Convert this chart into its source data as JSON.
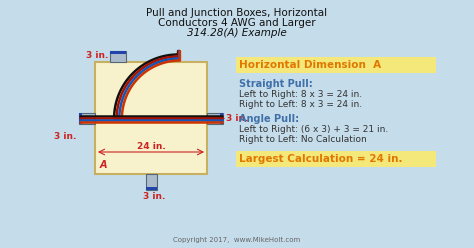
{
  "title_line1": "Pull and Junction Boxes, Horizontal",
  "title_line2": "Conductors 4 AWG and Larger",
  "title_line3": "314.28(A) Example",
  "bg_color": "#c5dcea",
  "box_fill_color": "#f7f2cc",
  "box_edge_color": "#c8b060",
  "dim_label_color": "#cc2222",
  "heading_color": "#e07800",
  "subheading_color": "#4070aa",
  "text_color": "#333333",
  "highlight_box_color": "#f5e87a",
  "copyright": "Copyright 2017,  www.MikeHolt.com",
  "right_title": "Horizontal Dimension  A",
  "straight_pull_title": "Straight Pull:",
  "straight_pull_l2r": "Left to Right: 8 x 3 = 24 in.",
  "straight_pull_r2l": "Right to Left: 8 x 3 = 24 in.",
  "angle_pull_title": "Angle Pull:",
  "angle_pull_l2r": "Left to Right: (6 x 3) + 3 = 21 in.",
  "angle_pull_r2l": "Right to Left: No Calculation",
  "largest_calc": "Largest Calculation = 24 in.",
  "wire_colors_curve": [
    "#111111",
    "#cc2200",
    "#0055aa",
    "#cc2200"
  ],
  "wire_colors_straight": [
    "#111111",
    "#cc2200",
    "#0055aa",
    "#cc2200"
  ]
}
